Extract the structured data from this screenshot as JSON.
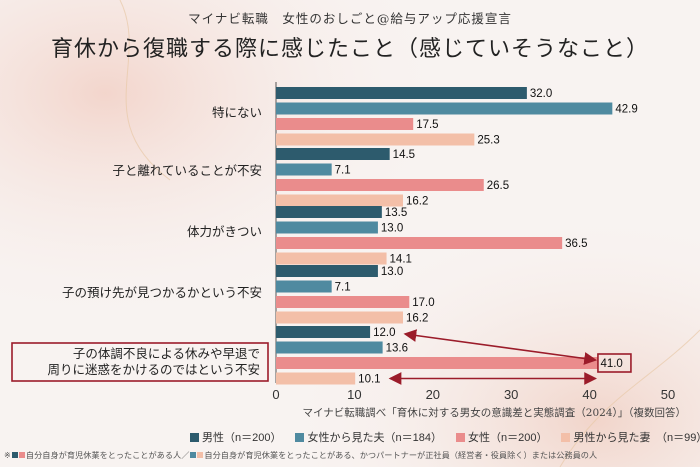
{
  "header": {
    "supertitle": "マイナビ転職　女性のおしごと@給与アップ応援宣言",
    "title": "育休から復職する際に感じたこと（感じていそうなこと）"
  },
  "chart_data": {
    "type": "bar",
    "orientation": "horizontal",
    "categories": [
      "特にない",
      "子と離れていることが不安",
      "体力がきつい",
      "子の預け先が見つかるかという不安",
      "子の体調不良による休みや早退で 周りに迷惑をかけるのではという不安"
    ],
    "series": [
      {
        "name": "男性（n＝200）",
        "color": "#2d5b6d",
        "values": [
          32.0,
          14.5,
          13.5,
          13.0,
          12.0
        ]
      },
      {
        "name": "女性から見た夫（n＝184）",
        "color": "#4f8aa0",
        "values": [
          42.9,
          7.1,
          13.0,
          7.1,
          13.6
        ]
      },
      {
        "name": "女性（n＝200）",
        "color": "#ea8c8c",
        "values": [
          17.5,
          26.5,
          36.5,
          17.0,
          41.0
        ]
      },
      {
        "name": "男性から見た妻　（n＝99）",
        "color": "#f3bfa8",
        "values": [
          25.3,
          16.2,
          14.1,
          16.2,
          10.1
        ]
      }
    ],
    "value_labels": [
      [
        "32.0",
        "42.9",
        "17.5",
        "25.3"
      ],
      [
        "14.5",
        "7.1",
        "26.5",
        "16.2"
      ],
      [
        "13.5",
        "13.0",
        "36.5",
        "14.1"
      ],
      [
        "13.0",
        "7.1",
        "17.0",
        "16.2"
      ],
      [
        "12.0",
        "13.6",
        "41.0",
        "10.1"
      ]
    ],
    "xlim": [
      0,
      50
    ],
    "xticks": [
      "0",
      "10",
      "20",
      "30",
      "40",
      "50"
    ],
    "grid": false,
    "legend_position": "bottom",
    "highlight_category_index": 4,
    "highlight_color": "#9b1c2a"
  },
  "source": "マイナビ転職調べ「育休に対する男女の意識差と実態調査（2024）」（複数回答）",
  "legend_items": [
    {
      "label": "男性（n＝200）",
      "color": "#2d5b6d"
    },
    {
      "label": "女性から見た夫（n＝184）",
      "color": "#4f8aa0"
    },
    {
      "label": "女性（n＝200）",
      "color": "#ea8c8c"
    },
    {
      "label": "男性から見た妻　（n＝99）",
      "color": "#f3bfa8"
    }
  ],
  "footnote": {
    "prefix": "※",
    "text_a": "自分自身が育児休業をとったことがある人／",
    "text_b": "自分自身が育児休業をとったことがある、かつパートナーが正社員（経営者・役員除く）または公務員の人"
  }
}
